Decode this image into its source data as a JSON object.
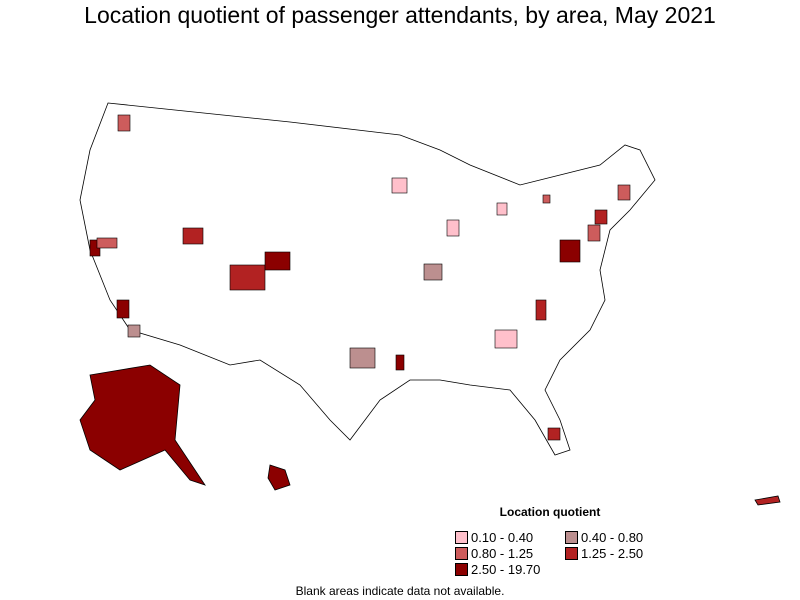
{
  "title": "Location quotient of passenger attendants, by area, May 2021",
  "legend": {
    "title": "Location quotient",
    "items": [
      {
        "label": "0.10 - 0.40",
        "color": "#FFC0CB"
      },
      {
        "label": "0.40 - 0.80",
        "color": "#BC8F8F"
      },
      {
        "label": "0.80 - 1.25",
        "color": "#CD5C5C"
      },
      {
        "label": "1.25 - 2.50",
        "color": "#B22222"
      },
      {
        "label": "2.50 - 19.70",
        "color": "#8B0000"
      }
    ]
  },
  "note": "Blank areas indicate data not available."
}
